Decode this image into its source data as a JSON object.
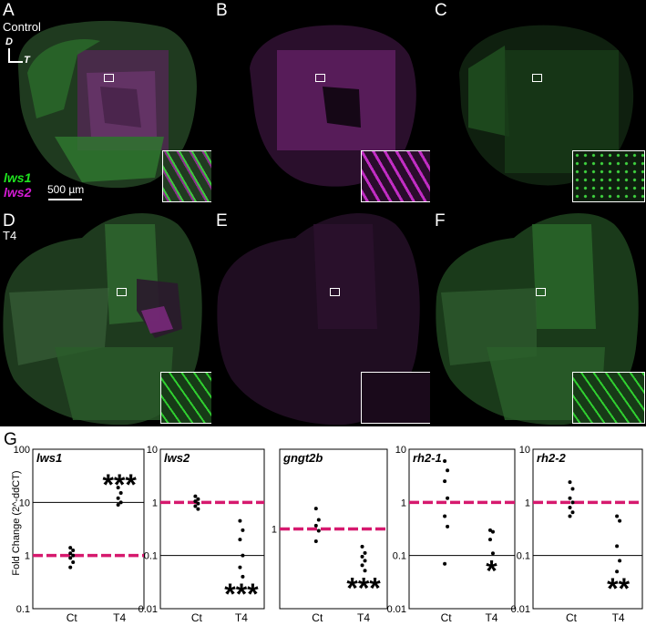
{
  "panels": [
    {
      "label": "A",
      "sub": "Control",
      "kind": "merge"
    },
    {
      "label": "B",
      "sub": "",
      "kind": "magenta"
    },
    {
      "label": "C",
      "sub": "",
      "kind": "green"
    },
    {
      "label": "D",
      "sub": "T4",
      "kind": "merge"
    },
    {
      "label": "E",
      "sub": "",
      "kind": "magenta"
    },
    {
      "label": "F",
      "sub": "",
      "kind": "green"
    }
  ],
  "axes_indicator": {
    "dorsal": "D",
    "temporal": "T"
  },
  "legend": {
    "lws1": "lws1",
    "lws2": "lws2"
  },
  "scale_bar": "500 µm",
  "colors": {
    "green": "#1fe51f",
    "magenta": "#d41bd4",
    "dashed_line": "#d6196e"
  },
  "graph_label": "G",
  "ylabel": "Fold Change (2^-ddCT)",
  "chart_data": [
    {
      "type": "scatter",
      "title": "lws1",
      "scale": "log",
      "ylim": [
        0.1,
        100
      ],
      "yticks": [
        "100",
        "10",
        "1",
        "0.1"
      ],
      "categories": [
        "Ct",
        "T4"
      ],
      "series": [
        {
          "values": [
            [
              1.4,
              1.25,
              1.1,
              1.0,
              0.9,
              0.75,
              0.6
            ],
            [
              19,
              15,
              12,
              10,
              9
            ]
          ]
        }
      ],
      "reference_lines": [
        1,
        10
      ],
      "significance": "***",
      "sig_group": "T4"
    },
    {
      "type": "scatter",
      "title": "lws2",
      "scale": "log",
      "ylim": [
        0.01,
        10
      ],
      "yticks": [
        "10",
        "1",
        "0.1",
        "0.01"
      ],
      "categories": [
        "Ct",
        "T4"
      ],
      "series": [
        {
          "values": [
            [
              1.3,
              1.15,
              1.05,
              0.95,
              0.85,
              0.75
            ],
            [
              0.45,
              0.3,
              0.2,
              0.1,
              0.06,
              0.04
            ]
          ]
        }
      ],
      "reference_lines": [
        1,
        0.1
      ],
      "significance": "***",
      "sig_group": "T4"
    },
    {
      "type": "scatter",
      "title": "gngt2b",
      "scale": "log",
      "ylim": [
        0.1,
        10
      ],
      "yticks": [
        "1"
      ],
      "categories": [
        "Ct",
        "T4"
      ],
      "series": [
        {
          "values": [
            [
              1.8,
              1.3,
              1.1,
              0.95,
              0.7
            ],
            [
              0.6,
              0.5,
              0.45,
              0.4,
              0.35,
              0.3
            ]
          ]
        }
      ],
      "reference_lines": [
        1
      ],
      "significance": "***",
      "sig_group": "T4"
    },
    {
      "type": "scatter",
      "title": "rh2-1",
      "scale": "log",
      "ylim": [
        0.01,
        10
      ],
      "yticks": [
        "10",
        "1",
        "0.1",
        "0.01"
      ],
      "categories": [
        "Ct",
        "T4"
      ],
      "series": [
        {
          "values": [
            [
              6,
              4,
              2.5,
              1.2,
              0.55,
              0.35,
              0.07
            ],
            [
              0.3,
              0.28,
              0.2,
              0.11
            ]
          ]
        }
      ],
      "reference_lines": [
        1,
        0.1
      ],
      "significance": "*",
      "sig_group": "T4"
    },
    {
      "type": "scatter",
      "title": "rh2-2",
      "scale": "log",
      "ylim": [
        0.01,
        10
      ],
      "yticks": [
        "10",
        "1",
        "0.1",
        "0.01"
      ],
      "categories": [
        "Ct",
        "T4"
      ],
      "series": [
        {
          "values": [
            [
              2.4,
              1.8,
              1.2,
              1.0,
              0.8,
              0.65,
              0.55
            ],
            [
              0.55,
              0.45,
              0.15,
              0.08,
              0.05
            ]
          ]
        }
      ],
      "reference_lines": [
        1,
        0.1
      ],
      "significance": "**",
      "sig_group": "T4"
    }
  ]
}
